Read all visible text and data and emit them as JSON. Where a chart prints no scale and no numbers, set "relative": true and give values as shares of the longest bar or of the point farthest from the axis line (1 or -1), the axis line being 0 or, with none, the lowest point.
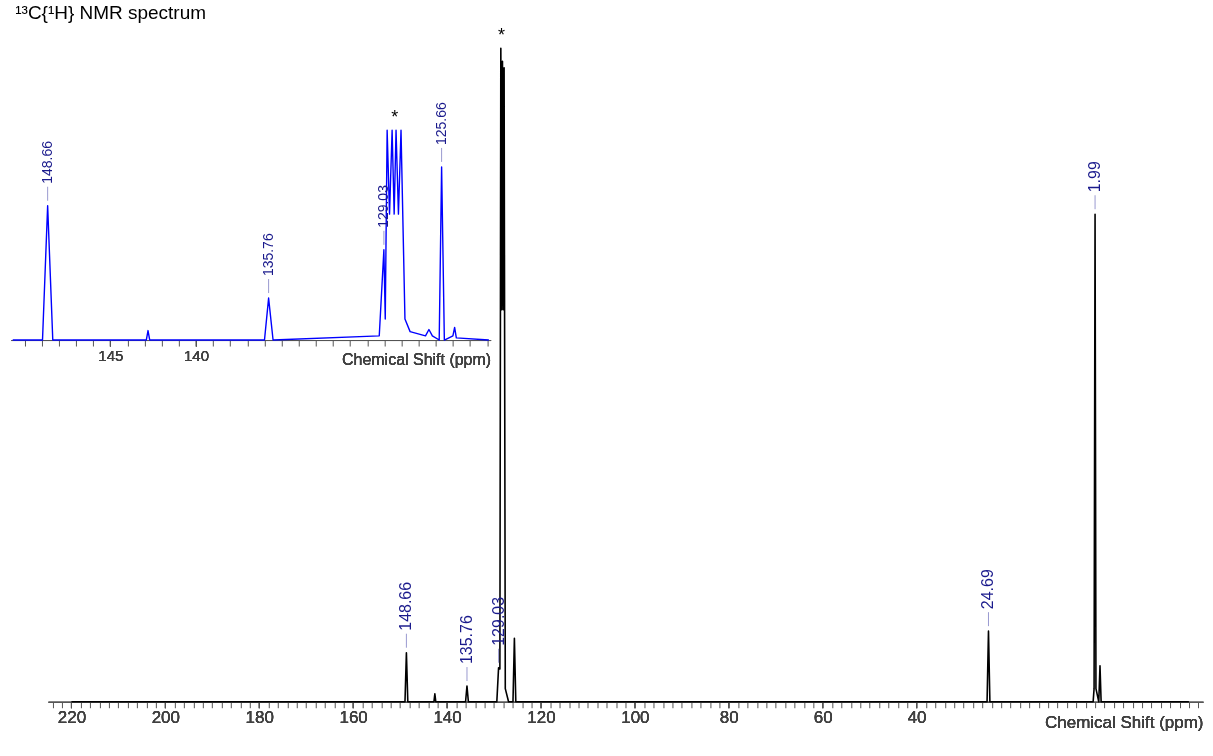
{
  "chart_data": [
    {
      "type": "line",
      "relative": true,
      "title": "¹³C{¹H} NMR spectrum",
      "xlabel": "Chemical Shift (ppm)",
      "xlim": [
        225,
        -21
      ],
      "xticks": [
        {
          "value": 224,
          "label": null
        },
        {
          "value": 222,
          "label": null
        },
        220,
        {
          "value": 218,
          "label": null
        },
        {
          "value": 216,
          "label": null
        },
        {
          "value": 214,
          "label": null
        },
        {
          "value": 212,
          "label": null
        },
        {
          "value": 210,
          "label": null
        },
        {
          "value": 208,
          "label": null
        },
        {
          "value": 206,
          "label": null
        },
        {
          "value": 204,
          "label": null
        },
        {
          "value": 202,
          "label": null
        },
        200,
        {
          "value": 198,
          "label": null
        },
        {
          "value": 196,
          "label": null
        },
        {
          "value": 194,
          "label": null
        },
        {
          "value": 192,
          "label": null
        },
        {
          "value": 190,
          "label": null
        },
        {
          "value": 188,
          "label": null
        },
        {
          "value": 186,
          "label": null
        },
        {
          "value": 184,
          "label": null
        },
        {
          "value": 182,
          "label": null
        },
        180,
        {
          "value": 178,
          "label": null
        },
        {
          "value": 176,
          "label": null
        },
        {
          "value": 174,
          "label": null
        },
        {
          "value": 172,
          "label": null
        },
        {
          "value": 170,
          "label": null
        },
        {
          "value": 168,
          "label": null
        },
        {
          "value": 166,
          "label": null
        },
        {
          "value": 164,
          "label": null
        },
        {
          "value": 162,
          "label": null
        },
        160,
        {
          "value": 158,
          "label": null
        },
        {
          "value": 156,
          "label": null
        },
        {
          "value": 154,
          "label": null
        },
        {
          "value": 152,
          "label": null
        },
        {
          "value": 150,
          "label": null
        },
        {
          "value": 148,
          "label": null
        },
        {
          "value": 146,
          "label": null
        },
        {
          "value": 144,
          "label": null
        },
        {
          "value": 142,
          "label": null
        },
        140,
        {
          "value": 138,
          "label": null
        },
        {
          "value": 136,
          "label": null
        },
        {
          "value": 134,
          "label": null
        },
        {
          "value": 132,
          "label": null
        },
        {
          "value": 130,
          "label": null
        },
        {
          "value": 128,
          "label": null
        },
        {
          "value": 126,
          "label": null
        },
        {
          "value": 124,
          "label": null
        },
        {
          "value": 122,
          "label": null
        },
        120,
        {
          "value": 118,
          "label": null
        },
        {
          "value": 116,
          "label": null
        },
        {
          "value": 114,
          "label": null
        },
        {
          "value": 112,
          "label": null
        },
        {
          "value": 110,
          "label": null
        },
        {
          "value": 108,
          "label": null
        },
        {
          "value": 106,
          "label": null
        },
        {
          "value": 104,
          "label": null
        },
        {
          "value": 102,
          "label": null
        },
        100,
        {
          "value": 98,
          "label": null
        },
        {
          "value": 96,
          "label": null
        },
        {
          "value": 94,
          "label": null
        },
        {
          "value": 92,
          "label": null
        },
        {
          "value": 90,
          "label": null
        },
        {
          "value": 88,
          "label": null
        },
        {
          "value": 86,
          "label": null
        },
        {
          "value": 84,
          "label": null
        },
        {
          "value": 82,
          "label": null
        },
        80,
        {
          "value": 78,
          "label": null
        },
        {
          "value": 76,
          "label": null
        },
        {
          "value": 74,
          "label": null
        },
        {
          "value": 72,
          "label": null
        },
        {
          "value": 70,
          "label": null
        },
        {
          "value": 68,
          "label": null
        },
        {
          "value": 66,
          "label": null
        },
        {
          "value": 64,
          "label": null
        },
        {
          "value": 62,
          "label": null
        },
        60,
        {
          "value": 58,
          "label": null
        },
        {
          "value": 56,
          "label": null
        },
        {
          "value": 54,
          "label": null
        },
        {
          "value": 52,
          "label": null
        },
        {
          "value": 50,
          "label": null
        },
        {
          "value": 48,
          "label": null
        },
        {
          "value": 46,
          "label": null
        },
        {
          "value": 44,
          "label": null
        },
        {
          "value": 42,
          "label": null
        },
        40,
        {
          "value": 38,
          "label": null
        },
        {
          "value": 36,
          "label": null
        },
        {
          "value": 34,
          "label": null
        },
        {
          "value": 32,
          "label": null
        },
        {
          "value": 30,
          "label": null
        },
        {
          "value": 28,
          "label": null
        },
        {
          "value": 26,
          "label": null
        },
        {
          "value": 24,
          "label": null
        },
        {
          "value": 22,
          "label": null
        },
        {
          "value": 20,
          "label": null
        },
        {
          "value": 18,
          "label": null
        },
        {
          "value": 16,
          "label": null
        },
        {
          "value": 14,
          "label": null
        },
        {
          "value": 12,
          "label": null
        },
        {
          "value": 10,
          "label": null
        },
        {
          "value": 8,
          "label": null
        },
        {
          "value": 6,
          "label": null
        },
        {
          "value": 4,
          "label": null
        },
        {
          "value": 2,
          "label": null
        },
        {
          "value": 0,
          "label": null
        },
        {
          "value": -2,
          "label": null
        },
        {
          "value": -4,
          "label": null
        },
        {
          "value": -6,
          "label": null
        },
        {
          "value": -8,
          "label": null
        },
        {
          "value": -10,
          "label": null
        },
        {
          "value": -12,
          "label": null
        },
        {
          "value": -14,
          "label": null
        },
        {
          "value": -16,
          "label": null
        },
        {
          "value": -18,
          "label": null
        },
        {
          "value": -20,
          "label": null
        }
      ],
      "series": [
        {
          "color": "#000000",
          "x": [
            220,
            148.96,
            148.66,
            148.36,
            142.8,
            142.6,
            142.4,
            136.06,
            135.76,
            135.46,
            129.4,
            129.03,
            128.75,
            128.55,
            128.35,
            128.2,
            128.0,
            127.85,
            127.6,
            126.9,
            125.96,
            125.66,
            125.36,
            24.99,
            24.69,
            24.39,
            2.4,
            2.2,
            1.99,
            1.8,
            1.2,
            0.94,
            0.7,
            -18
          ],
          "values": [
            0,
            0,
            0.075,
            0,
            0,
            0.012,
            0,
            0,
            0.024,
            0,
            0,
            0.052,
            0.05,
            1.0,
            0.6,
            0.98,
            0.6,
            0.97,
            0.02,
            0,
            0,
            0.097,
            0,
            0,
            0.108,
            0,
            0,
            0.02,
            0.746,
            0.02,
            0,
            0.055,
            0,
            0
          ]
        }
      ],
      "annotations": [
        {
          "text": "148.66",
          "x": 148.66,
          "y": 0.075
        },
        {
          "text": "135.76",
          "x": 135.76,
          "y": 0.024
        },
        {
          "text": "129.03",
          "x": 129.03,
          "y": 0.052
        },
        {
          "text": "24.69",
          "x": 24.69,
          "y": 0.108
        },
        {
          "text": "1.99",
          "x": 1.99,
          "y": 0.746
        },
        {
          "text": "*",
          "x": 128.4,
          "y": 1.0
        }
      ]
    },
    {
      "type": "line",
      "relative": true,
      "xlabel": "Chemical Shift (ppm)",
      "xlim": [
        150.8,
        122.8
      ],
      "xticks": [
        {
          "value": 150,
          "label": null
        },
        {
          "value": 149,
          "label": null
        },
        {
          "value": 148,
          "label": null
        },
        {
          "value": 147,
          "label": null
        },
        {
          "value": 146,
          "label": null
        },
        145,
        {
          "value": 144,
          "label": null
        },
        {
          "value": 143,
          "label": null
        },
        {
          "value": 142,
          "label": null
        },
        {
          "value": 141,
          "label": null
        },
        140,
        {
          "value": 139,
          "label": null
        },
        {
          "value": 138,
          "label": null
        },
        {
          "value": 137,
          "label": null
        },
        {
          "value": 136,
          "label": null
        },
        {
          "value": 135,
          "label": null
        },
        {
          "value": 134,
          "label": null
        },
        {
          "value": 133,
          "label": null
        },
        {
          "value": 132,
          "label": null
        },
        {
          "value": 131,
          "label": null
        },
        {
          "value": 130,
          "label": null
        },
        {
          "value": 129,
          "label": null
        },
        {
          "value": 128,
          "label": null
        },
        {
          "value": 127,
          "label": null
        },
        {
          "value": 126,
          "label": null
        },
        {
          "value": 125,
          "label": null
        },
        {
          "value": 124,
          "label": null
        },
        {
          "value": 123,
          "label": null
        }
      ],
      "series": [
        {
          "color": "#0000ff",
          "x": [
            150.7,
            148.96,
            148.66,
            148.36,
            142.9,
            142.8,
            142.7,
            136.0,
            135.76,
            135.5,
            129.3,
            129.03,
            128.95,
            128.84,
            128.7,
            128.55,
            128.43,
            128.32,
            128.18,
            128.03,
            127.8,
            127.5,
            126.6,
            126.4,
            126.2,
            125.8,
            125.66,
            125.5,
            125.0,
            124.9,
            124.8,
            122.9
          ],
          "values": [
            0,
            0,
            0.64,
            0,
            0,
            0.045,
            0,
            0,
            0.2,
            0,
            0.02,
            0.43,
            0.1,
            1,
            0.6,
            1,
            0.6,
            1,
            0.6,
            1,
            0.1,
            0.04,
            0.02,
            0.05,
            0.02,
            0,
            0.825,
            0,
            0.02,
            0.06,
            0.01,
            0
          ]
        }
      ],
      "annotations": [
        {
          "text": "148.66",
          "x": 148.66,
          "y": 0.64
        },
        {
          "text": "135.76",
          "x": 135.76,
          "y": 0.2
        },
        {
          "text": "129.03",
          "x": 129.03,
          "y": 0.43
        },
        {
          "text": "125.66",
          "x": 125.66,
          "y": 0.825
        },
        {
          "text": "*",
          "x": 128.4,
          "y": 1.0
        }
      ]
    }
  ]
}
